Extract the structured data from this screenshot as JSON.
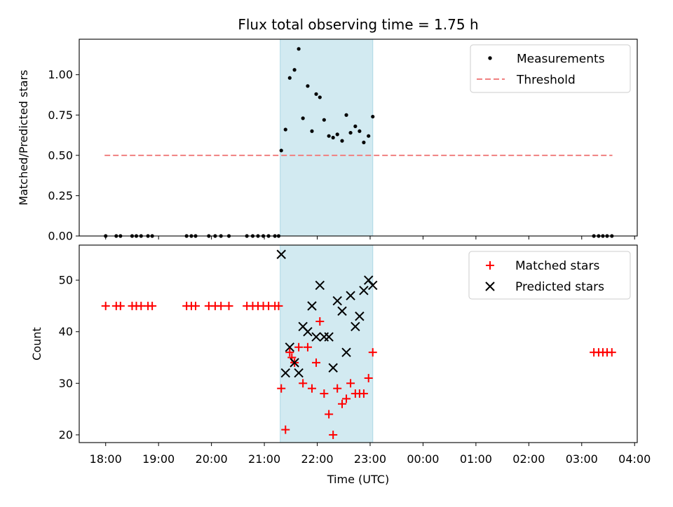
{
  "chart_data": [
    {
      "type": "scatter",
      "panel": "top",
      "title": "Flux total observing time = 1.75 h",
      "ylabel": "Matched/Predicted stars",
      "xlabel": "",
      "xlim_hours": [
        17.5,
        28.05
      ],
      "ylim": [
        0,
        1.22
      ],
      "yticks": [
        0.0,
        0.25,
        0.5,
        0.75,
        1.0
      ],
      "ytick_labels": [
        "0.00",
        "0.25",
        "0.50",
        "0.75",
        "1.00"
      ],
      "legend_position": "top-right",
      "shaded_interval_hours": [
        21.3,
        23.05
      ],
      "shade_color": "#add8e6",
      "series": [
        {
          "name": "Measurements",
          "marker": "dot",
          "color": "#000000",
          "points": [
            [
              18.0,
              0
            ],
            [
              18.2,
              0
            ],
            [
              18.28,
              0
            ],
            [
              18.5,
              0
            ],
            [
              18.58,
              0
            ],
            [
              18.67,
              0
            ],
            [
              18.8,
              0
            ],
            [
              18.88,
              0
            ],
            [
              19.53,
              0
            ],
            [
              19.62,
              0
            ],
            [
              19.7,
              0
            ],
            [
              19.95,
              0
            ],
            [
              20.07,
              0
            ],
            [
              20.18,
              0
            ],
            [
              20.33,
              0
            ],
            [
              20.67,
              0
            ],
            [
              20.78,
              0
            ],
            [
              20.88,
              0
            ],
            [
              20.98,
              0
            ],
            [
              21.08,
              0
            ],
            [
              21.2,
              0
            ],
            [
              21.27,
              0
            ],
            [
              21.32,
              0.53
            ],
            [
              21.4,
              0.66
            ],
            [
              21.48,
              0.98
            ],
            [
              21.57,
              1.03
            ],
            [
              21.65,
              1.16
            ],
            [
              21.73,
              0.73
            ],
            [
              21.82,
              0.93
            ],
            [
              21.9,
              0.65
            ],
            [
              21.98,
              0.88
            ],
            [
              22.05,
              0.86
            ],
            [
              22.13,
              0.72
            ],
            [
              22.22,
              0.62
            ],
            [
              22.3,
              0.61
            ],
            [
              22.38,
              0.63
            ],
            [
              22.47,
              0.59
            ],
            [
              22.55,
              0.75
            ],
            [
              22.63,
              0.64
            ],
            [
              22.72,
              0.68
            ],
            [
              22.8,
              0.65
            ],
            [
              22.88,
              0.58
            ],
            [
              22.97,
              0.62
            ],
            [
              23.05,
              0.74
            ],
            [
              27.23,
              0
            ],
            [
              27.32,
              0
            ],
            [
              27.4,
              0
            ],
            [
              27.48,
              0
            ],
            [
              27.57,
              0
            ]
          ]
        },
        {
          "name": "Threshold",
          "marker": "dashed-line",
          "color": "#f08080",
          "x_range_hours": [
            17.98,
            27.58
          ],
          "y": 0.5
        }
      ]
    },
    {
      "type": "scatter",
      "panel": "bottom",
      "title": "",
      "xlabel": "Time (UTC)",
      "ylabel": "Count",
      "xlim_hours": [
        17.5,
        28.05
      ],
      "ylim": [
        18.5,
        56.8
      ],
      "yticks": [
        20,
        30,
        40,
        50
      ],
      "ytick_labels": [
        "20",
        "30",
        "40",
        "50"
      ],
      "xticks_hours": [
        18,
        19,
        20,
        21,
        22,
        23,
        24,
        25,
        26,
        27,
        28
      ],
      "xtick_labels": [
        "18:00",
        "19:00",
        "20:00",
        "21:00",
        "22:00",
        "23:00",
        "00:00",
        "01:00",
        "02:00",
        "03:00",
        "04:00"
      ],
      "legend_position": "top-right",
      "shaded_interval_hours": [
        21.3,
        23.05
      ],
      "shade_color": "#add8e6",
      "series": [
        {
          "name": "Matched stars",
          "marker": "plus",
          "color": "#ff0000",
          "points": [
            [
              18.0,
              45
            ],
            [
              18.2,
              45
            ],
            [
              18.28,
              45
            ],
            [
              18.5,
              45
            ],
            [
              18.58,
              45
            ],
            [
              18.67,
              45
            ],
            [
              18.8,
              45
            ],
            [
              18.88,
              45
            ],
            [
              19.53,
              45
            ],
            [
              19.62,
              45
            ],
            [
              19.7,
              45
            ],
            [
              19.95,
              45
            ],
            [
              20.07,
              45
            ],
            [
              20.18,
              45
            ],
            [
              20.33,
              45
            ],
            [
              20.67,
              45
            ],
            [
              20.78,
              45
            ],
            [
              20.88,
              45
            ],
            [
              20.98,
              45
            ],
            [
              21.08,
              45
            ],
            [
              21.2,
              45
            ],
            [
              21.27,
              45
            ],
            [
              21.32,
              29
            ],
            [
              21.4,
              21
            ],
            [
              21.48,
              36
            ],
            [
              21.52,
              35
            ],
            [
              21.57,
              34
            ],
            [
              21.65,
              37
            ],
            [
              21.73,
              30
            ],
            [
              21.82,
              37
            ],
            [
              21.9,
              29
            ],
            [
              21.98,
              34
            ],
            [
              22.05,
              42
            ],
            [
              22.13,
              28
            ],
            [
              22.22,
              24
            ],
            [
              22.3,
              20
            ],
            [
              22.38,
              29
            ],
            [
              22.47,
              26
            ],
            [
              22.55,
              27
            ],
            [
              22.63,
              30
            ],
            [
              22.72,
              28
            ],
            [
              22.8,
              28
            ],
            [
              22.88,
              28
            ],
            [
              22.97,
              31
            ],
            [
              23.05,
              36
            ],
            [
              27.23,
              36
            ],
            [
              27.32,
              36
            ],
            [
              27.4,
              36
            ],
            [
              27.48,
              36
            ],
            [
              27.57,
              36
            ]
          ]
        },
        {
          "name": "Predicted stars",
          "marker": "x",
          "color": "#000000",
          "points": [
            [
              21.32,
              55
            ],
            [
              21.4,
              32
            ],
            [
              21.48,
              37
            ],
            [
              21.57,
              34
            ],
            [
              21.65,
              32
            ],
            [
              21.73,
              41
            ],
            [
              21.82,
              40
            ],
            [
              21.9,
              45
            ],
            [
              21.98,
              39
            ],
            [
              22.05,
              49
            ],
            [
              22.13,
              39
            ],
            [
              22.22,
              39
            ],
            [
              22.3,
              33
            ],
            [
              22.38,
              46
            ],
            [
              22.47,
              44
            ],
            [
              22.55,
              36
            ],
            [
              22.63,
              47
            ],
            [
              22.72,
              41
            ],
            [
              22.8,
              43
            ],
            [
              22.88,
              48
            ],
            [
              22.97,
              50
            ],
            [
              23.05,
              49
            ]
          ]
        }
      ]
    }
  ]
}
